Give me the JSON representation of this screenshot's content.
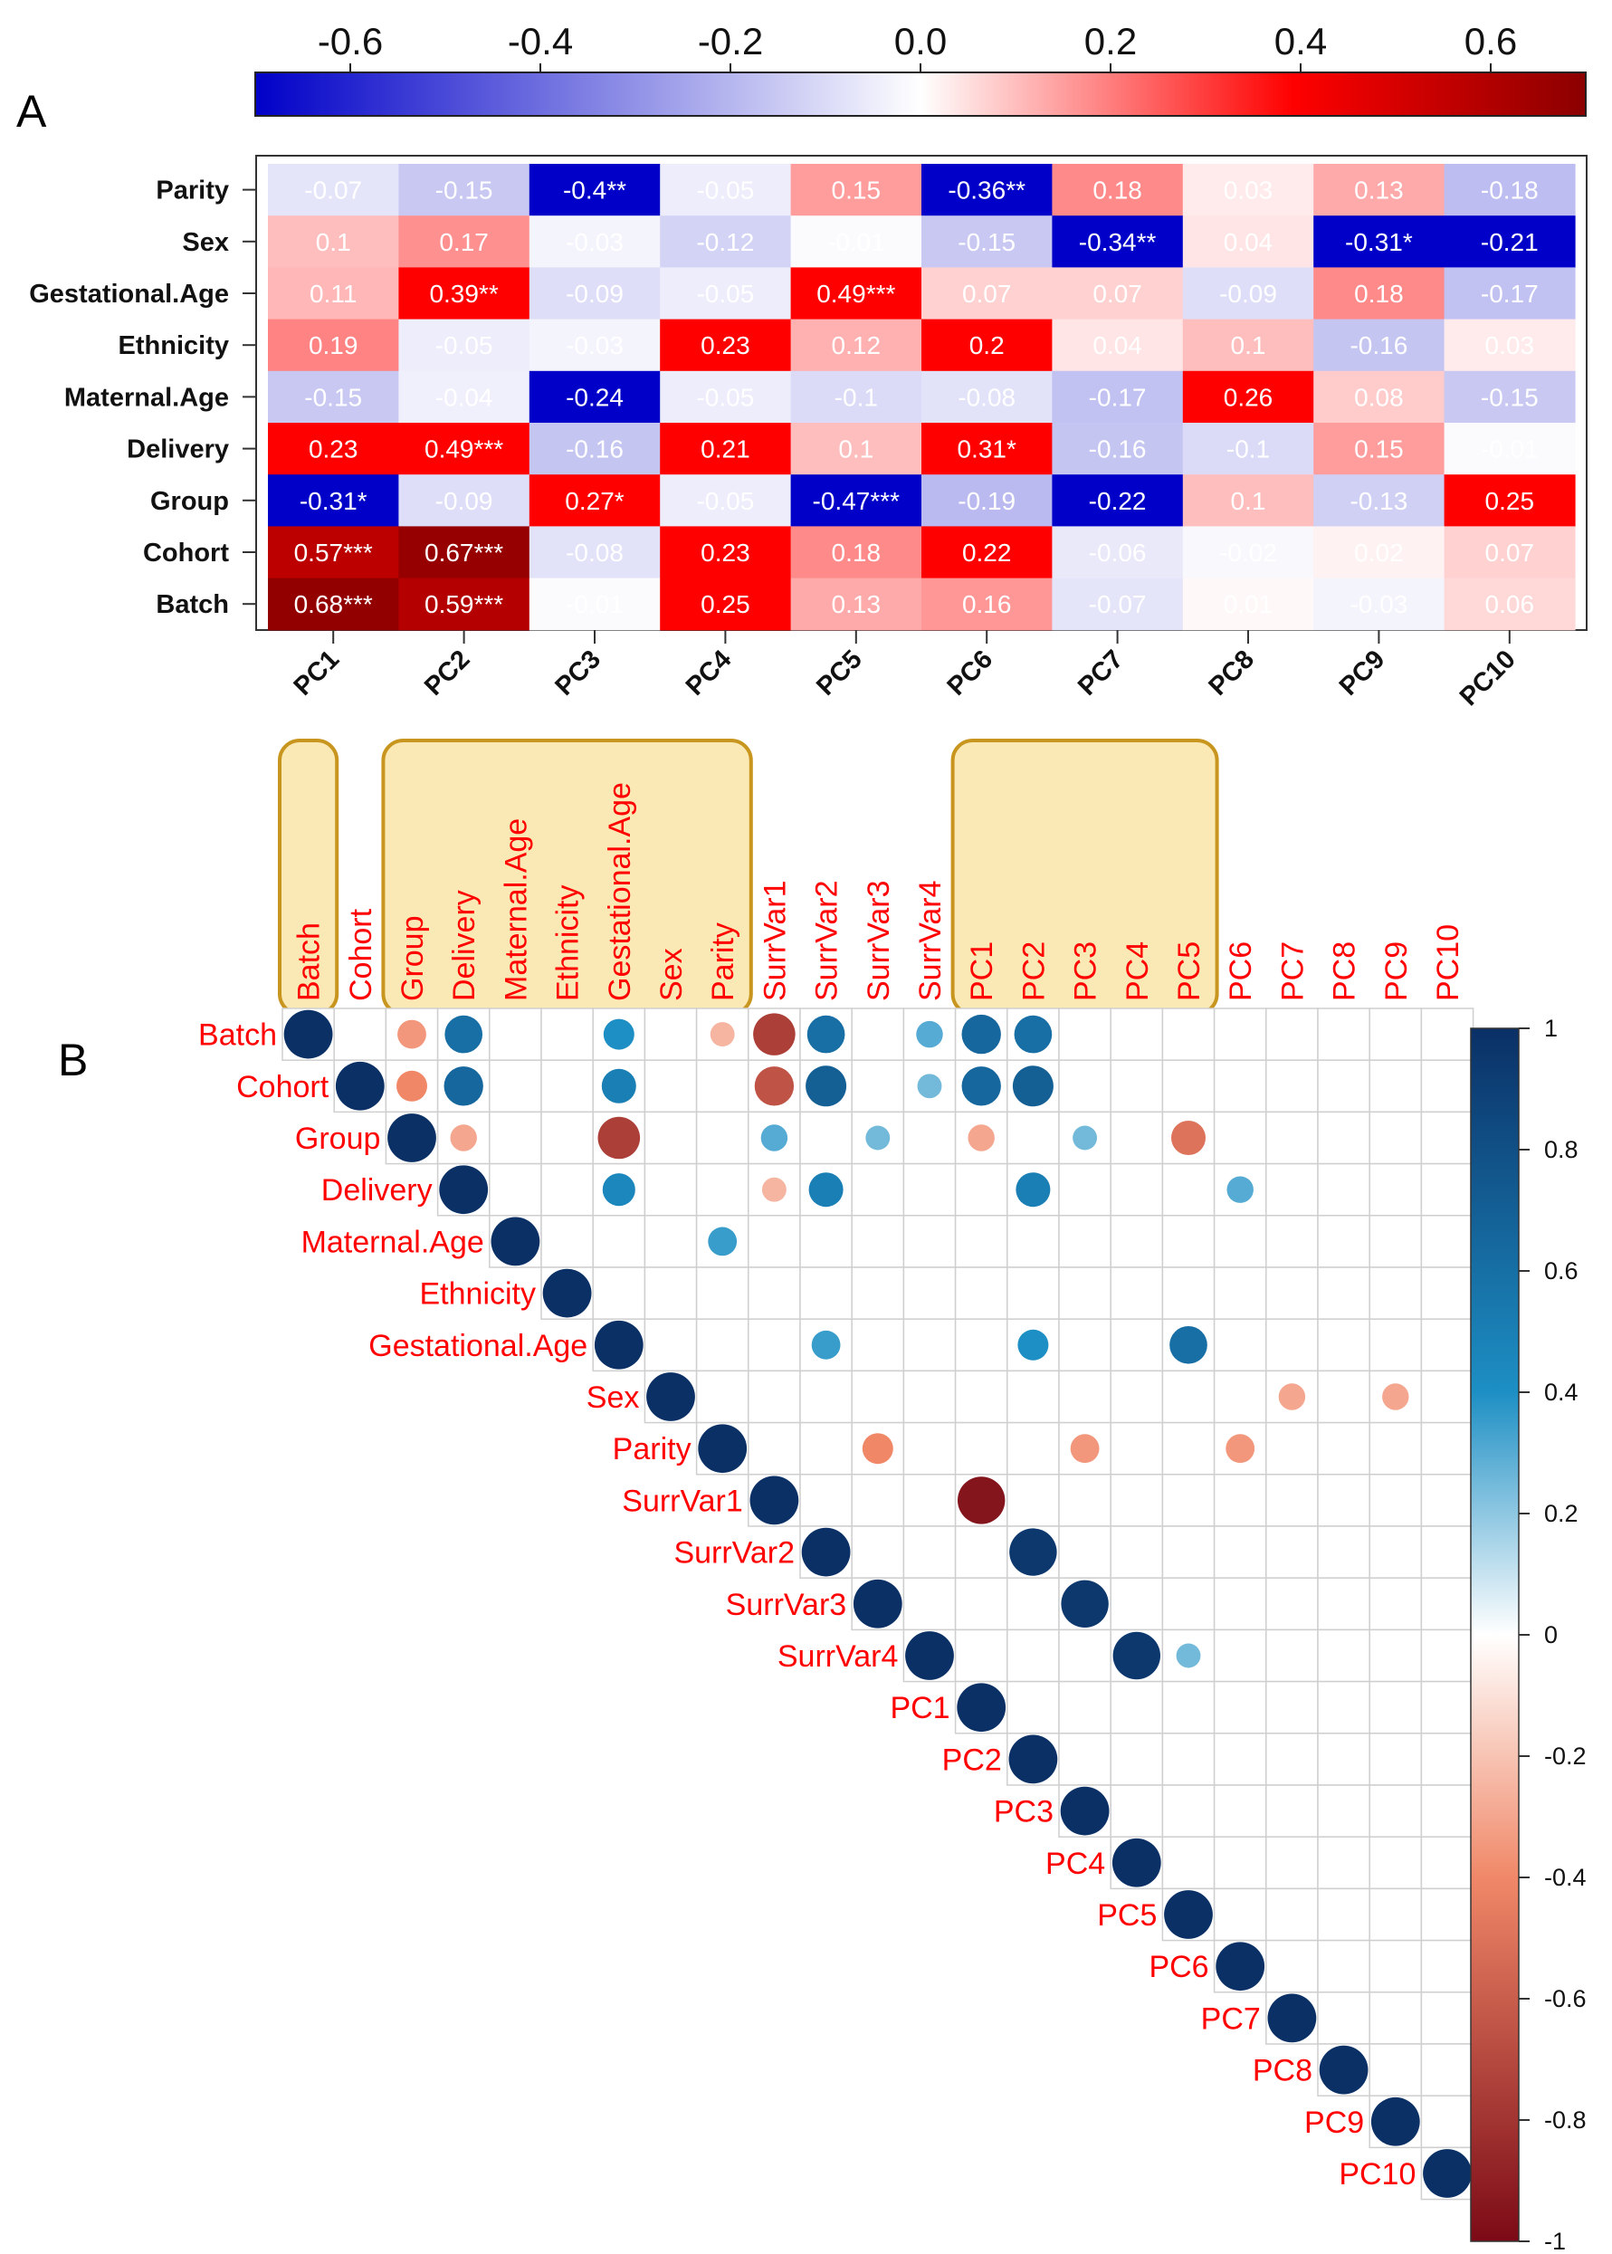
{
  "panel_labels": {
    "a": "A",
    "b": "B"
  },
  "colors": {
    "heat_neg": "#0000c8",
    "heat_mid": "#ffffff",
    "heat_pos": "#ff0000",
    "heat_dark": "#8b0000",
    "corr_pos": "#0a3066",
    "corr_mid_pos": "#1d8fc4",
    "corr_neg": "#7b0a16",
    "corr_mid_neg": "#f08868",
    "label_red": "#ff0000",
    "highlight_fill": "#fbe9b5",
    "highlight_stroke": "#c8961e"
  },
  "chart_data": [
    {
      "type": "heatmap",
      "panel": "A",
      "title": "",
      "rows": [
        "Parity",
        "Sex",
        "Gestational.Age",
        "Ethnicity",
        "Maternal.Age",
        "Delivery",
        "Group",
        "Cohort",
        "Batch"
      ],
      "columns": [
        "PC1",
        "PC2",
        "PC3",
        "PC4",
        "PC5",
        "PC6",
        "PC7",
        "PC8",
        "PC9",
        "PC10"
      ],
      "values": [
        [
          -0.07,
          -0.15,
          -0.4,
          -0.05,
          0.15,
          -0.36,
          0.18,
          0.03,
          0.13,
          -0.18
        ],
        [
          0.1,
          0.17,
          -0.03,
          -0.12,
          -0.01,
          -0.15,
          -0.34,
          0.04,
          -0.31,
          -0.21
        ],
        [
          0.11,
          0.39,
          -0.09,
          -0.05,
          0.49,
          0.07,
          0.07,
          -0.09,
          0.18,
          -0.17
        ],
        [
          0.19,
          -0.05,
          -0.03,
          0.23,
          0.12,
          0.2,
          0.04,
          0.1,
          -0.16,
          0.03
        ],
        [
          -0.15,
          -0.04,
          -0.24,
          -0.05,
          -0.1,
          -0.08,
          -0.17,
          0.26,
          0.08,
          -0.15
        ],
        [
          0.23,
          0.49,
          -0.16,
          0.21,
          0.1,
          0.31,
          -0.16,
          -0.1,
          0.15,
          -0.01
        ],
        [
          -0.31,
          -0.09,
          0.27,
          -0.05,
          -0.47,
          -0.19,
          -0.22,
          0.1,
          -0.13,
          0.25
        ],
        [
          0.57,
          0.67,
          -0.08,
          0.23,
          0.18,
          0.22,
          -0.06,
          -0.02,
          0.02,
          0.07
        ],
        [
          0.68,
          0.59,
          -0.01,
          0.25,
          0.13,
          0.16,
          -0.07,
          0.01,
          -0.03,
          0.06
        ]
      ],
      "cell_labels": [
        [
          "-0.07",
          "-0.15",
          "-0.4**",
          "-0.05",
          "0.15",
          "-0.36**",
          "0.18",
          "0.03",
          "0.13",
          "-0.18"
        ],
        [
          "0.1",
          "0.17",
          "-0.03",
          "-0.12",
          "-0.01",
          "-0.15",
          "-0.34**",
          "0.04",
          "-0.31*",
          "-0.21"
        ],
        [
          "0.11",
          "0.39**",
          "-0.09",
          "-0.05",
          "0.49***",
          "0.07",
          "0.07",
          "-0.09",
          "0.18",
          "-0.17"
        ],
        [
          "0.19",
          "-0.05",
          "-0.03",
          "0.23",
          "0.12",
          "0.2",
          "0.04",
          "0.1",
          "-0.16",
          "0.03"
        ],
        [
          "-0.15",
          "-0.04",
          "-0.24",
          "-0.05",
          "-0.1",
          "-0.08",
          "-0.17",
          "0.26",
          "0.08",
          "-0.15"
        ],
        [
          "0.23",
          "0.49***",
          "-0.16",
          "0.21",
          "0.1",
          "0.31*",
          "-0.16",
          "-0.1",
          "0.15",
          "-0.01"
        ],
        [
          "-0.31*",
          "-0.09",
          "0.27*",
          "-0.05",
          "-0.47***",
          "-0.19",
          "-0.22",
          "0.1",
          "-0.13",
          "0.25"
        ],
        [
          "0.57***",
          "0.67***",
          "-0.08",
          "0.23",
          "0.18",
          "0.22",
          "-0.06",
          "-0.02",
          "0.02",
          "0.07"
        ],
        [
          "0.68***",
          "0.59***",
          "-0.01",
          "0.25",
          "0.13",
          "0.16",
          "-0.07",
          "0.01",
          "-0.03",
          "0.06"
        ]
      ],
      "colorbar": {
        "position": "top",
        "range": [
          -0.7,
          0.7
        ],
        "ticks": [
          -0.6,
          -0.4,
          -0.2,
          0.0,
          0.2,
          0.4,
          0.6
        ],
        "tick_labels": [
          "-0.6",
          "-0.4",
          "-0.2",
          "0.0",
          "0.2",
          "0.4",
          "0.6"
        ]
      }
    },
    {
      "type": "scatter",
      "subtype": "correlation-matrix-upper-triangle",
      "panel": "B",
      "variables": [
        "Batch",
        "Cohort",
        "Group",
        "Delivery",
        "Maternal.Age",
        "Ethnicity",
        "Gestational.Age",
        "Sex",
        "Parity",
        "SurrVar1",
        "SurrVar2",
        "SurrVar3",
        "SurrVar4",
        "PC1",
        "PC2",
        "PC3",
        "PC4",
        "PC5",
        "PC6",
        "PC7",
        "PC8",
        "PC9",
        "PC10"
      ],
      "points": [
        {
          "row": "Batch",
          "col": "Group",
          "r": -0.35
        },
        {
          "row": "Batch",
          "col": "Delivery",
          "r": 0.6
        },
        {
          "row": "Batch",
          "col": "Gestational.Age",
          "r": 0.4
        },
        {
          "row": "Batch",
          "col": "Parity",
          "r": -0.25
        },
        {
          "row": "Batch",
          "col": "SurrVar1",
          "r": -0.75
        },
        {
          "row": "Batch",
          "col": "SurrVar2",
          "r": 0.6
        },
        {
          "row": "Batch",
          "col": "SurrVar4",
          "r": 0.3
        },
        {
          "row": "Batch",
          "col": "PC1",
          "r": 0.65
        },
        {
          "row": "Batch",
          "col": "PC2",
          "r": 0.6
        },
        {
          "row": "Cohort",
          "col": "Group",
          "r": -0.4
        },
        {
          "row": "Cohort",
          "col": "Delivery",
          "r": 0.65
        },
        {
          "row": "Cohort",
          "col": "Gestational.Age",
          "r": 0.5
        },
        {
          "row": "Cohort",
          "col": "SurrVar1",
          "r": -0.65
        },
        {
          "row": "Cohort",
          "col": "SurrVar2",
          "r": 0.7
        },
        {
          "row": "Cohort",
          "col": "SurrVar4",
          "r": 0.25
        },
        {
          "row": "Cohort",
          "col": "PC1",
          "r": 0.65
        },
        {
          "row": "Cohort",
          "col": "PC2",
          "r": 0.7
        },
        {
          "row": "Group",
          "col": "Delivery",
          "r": -0.3
        },
        {
          "row": "Group",
          "col": "Gestational.Age",
          "r": -0.75
        },
        {
          "row": "Group",
          "col": "SurrVar1",
          "r": 0.3
        },
        {
          "row": "Group",
          "col": "SurrVar3",
          "r": 0.25
        },
        {
          "row": "Group",
          "col": "PC1",
          "r": -0.3
        },
        {
          "row": "Group",
          "col": "PC3",
          "r": 0.25
        },
        {
          "row": "Group",
          "col": "PC5",
          "r": -0.5
        },
        {
          "row": "Delivery",
          "col": "Gestational.Age",
          "r": 0.45
        },
        {
          "row": "Delivery",
          "col": "SurrVar1",
          "r": -0.25
        },
        {
          "row": "Delivery",
          "col": "SurrVar2",
          "r": 0.5
        },
        {
          "row": "Delivery",
          "col": "PC2",
          "r": 0.5
        },
        {
          "row": "Delivery",
          "col": "PC6",
          "r": 0.3
        },
        {
          "row": "Maternal.Age",
          "col": "Parity",
          "r": 0.35
        },
        {
          "row": "Gestational.Age",
          "col": "SurrVar2",
          "r": 0.35
        },
        {
          "row": "Gestational.Age",
          "col": "PC2",
          "r": 0.4
        },
        {
          "row": "Gestational.Age",
          "col": "PC5",
          "r": 0.6
        },
        {
          "row": "Sex",
          "col": "PC7",
          "r": -0.3
        },
        {
          "row": "Sex",
          "col": "PC9",
          "r": -0.3
        },
        {
          "row": "Parity",
          "col": "SurrVar3",
          "r": -0.4
        },
        {
          "row": "Parity",
          "col": "PC3",
          "r": -0.35
        },
        {
          "row": "Parity",
          "col": "PC6",
          "r": -0.35
        },
        {
          "row": "SurrVar1",
          "col": "PC1",
          "r": -0.95
        },
        {
          "row": "SurrVar2",
          "col": "PC2",
          "r": 0.95
        },
        {
          "row": "SurrVar3",
          "col": "PC3",
          "r": 0.95
        },
        {
          "row": "SurrVar4",
          "col": "PC4",
          "r": 0.95
        },
        {
          "row": "SurrVar4",
          "col": "PC5",
          "r": 0.25
        }
      ],
      "colorbar": {
        "position": "right",
        "range": [
          -1,
          1
        ],
        "ticks": [
          1,
          0.8,
          0.6,
          0.4,
          0.2,
          0,
          -0.2,
          -0.4,
          -0.6,
          -0.8,
          -1
        ],
        "tick_labels": [
          "1",
          "0.8",
          "0.6",
          "0.4",
          "0.2",
          "0",
          "-0.2",
          "-0.4",
          "-0.6",
          "-0.8",
          "-1"
        ]
      },
      "highlight_groups": [
        [
          "Batch"
        ],
        [
          "Group",
          "Delivery",
          "Maternal.Age",
          "Ethnicity",
          "Gestational.Age",
          "Sex",
          "Parity"
        ],
        [
          "PC1",
          "PC2",
          "PC3",
          "PC4",
          "PC5"
        ]
      ]
    }
  ]
}
